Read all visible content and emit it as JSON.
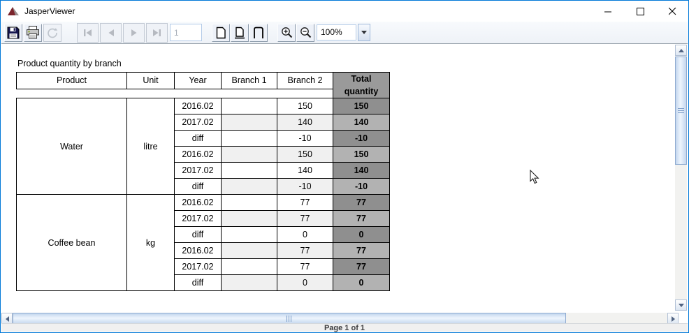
{
  "window": {
    "title": "JasperViewer"
  },
  "toolbar": {
    "page_value": "1",
    "zoom_level": "100%",
    "buttons": [
      {
        "name": "save",
        "icon": "floppy-disk-icon",
        "enabled": true
      },
      {
        "name": "print",
        "icon": "printer-icon",
        "enabled": true
      },
      {
        "name": "reload",
        "icon": "reload-icon",
        "enabled": false
      },
      {
        "name": "first-page",
        "icon": "first-page-icon",
        "enabled": false
      },
      {
        "name": "previous-page",
        "icon": "previous-page-icon",
        "enabled": false
      },
      {
        "name": "next-page",
        "icon": "next-page-icon",
        "enabled": false
      },
      {
        "name": "last-page",
        "icon": "last-page-icon",
        "enabled": false
      },
      {
        "name": "actual-size",
        "icon": "actual-size-page-icon",
        "enabled": true
      },
      {
        "name": "fit-page",
        "icon": "fit-page-icon",
        "enabled": true
      },
      {
        "name": "fit-width",
        "icon": "fit-width-icon",
        "enabled": true
      },
      {
        "name": "zoom-in",
        "icon": "zoom-in-icon",
        "enabled": true
      },
      {
        "name": "zoom-out",
        "icon": "zoom-out-icon",
        "enabled": true
      }
    ]
  },
  "report": {
    "title": "Product quantity by branch",
    "table": {
      "columns": [
        "Product",
        "Unit",
        "Year",
        "Branch 1",
        "Branch 2",
        "Total quantity"
      ],
      "groups": [
        {
          "product": "Water",
          "unit": "litre",
          "rows": [
            {
              "year": "2016.02",
              "branch1": "",
              "branch2": "150",
              "total": "150"
            },
            {
              "year": "2017.02",
              "branch1": "",
              "branch2": "140",
              "total": "140"
            },
            {
              "year": "diff",
              "branch1": "",
              "branch2": "-10",
              "total": "-10"
            },
            {
              "year": "2016.02",
              "branch1": "",
              "branch2": "150",
              "total": "150"
            },
            {
              "year": "2017.02",
              "branch1": "",
              "branch2": "140",
              "total": "140"
            },
            {
              "year": "diff",
              "branch1": "",
              "branch2": "-10",
              "total": "-10"
            }
          ]
        },
        {
          "product": "Coffee bean",
          "unit": "kg",
          "rows": [
            {
              "year": "2016.02",
              "branch1": "",
              "branch2": "77",
              "total": "77"
            },
            {
              "year": "2017.02",
              "branch1": "",
              "branch2": "77",
              "total": "77"
            },
            {
              "year": "diff",
              "branch1": "",
              "branch2": "0",
              "total": "0"
            },
            {
              "year": "2016.02",
              "branch1": "",
              "branch2": "77",
              "total": "77"
            },
            {
              "year": "2017.02",
              "branch1": "",
              "branch2": "77",
              "total": "77"
            },
            {
              "year": "diff",
              "branch1": "",
              "branch2": "0",
              "total": "0"
            }
          ]
        }
      ]
    }
  },
  "statusbar": {
    "text": "Page 1 of 1"
  },
  "colors": {
    "accent_border": "#0078d7",
    "total_header_bg": "#9a9a9a",
    "total_row_dark": "#8f8f8f",
    "total_row_light": "#b2b2b2",
    "alt_row_bg": "#f0f0f0",
    "table_border": "#000000"
  }
}
